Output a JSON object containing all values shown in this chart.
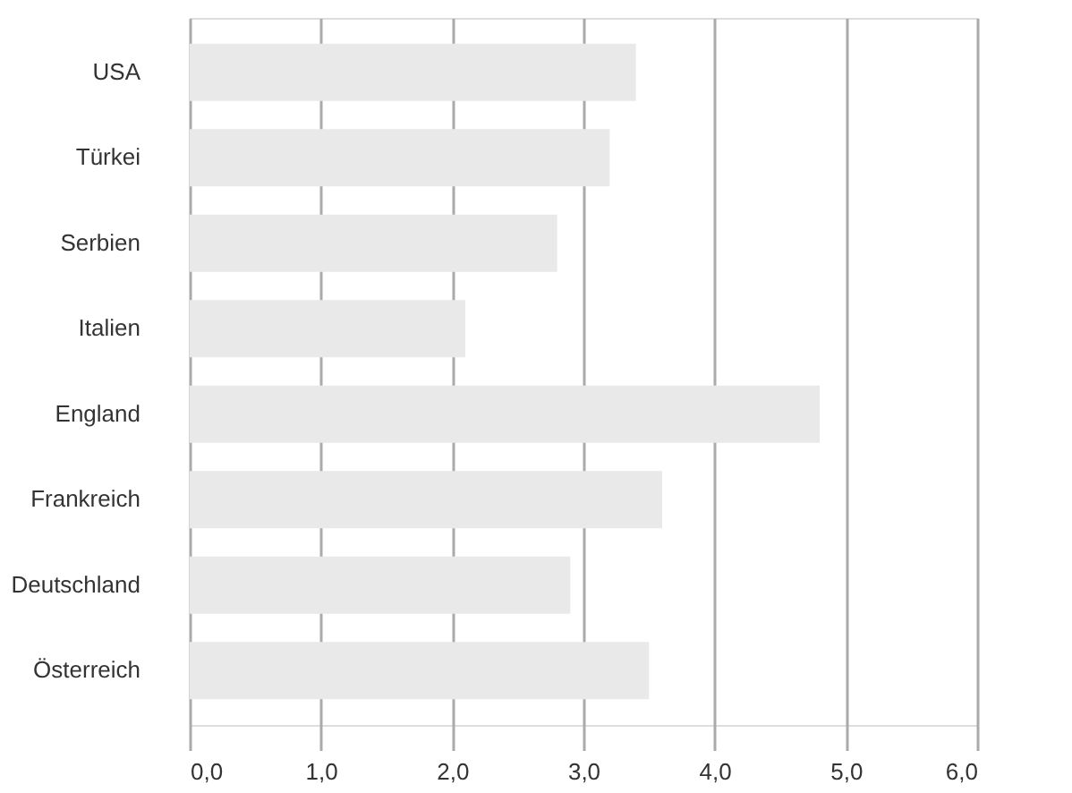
{
  "chart_data": {
    "type": "bar",
    "orientation": "horizontal",
    "categories": [
      "USA",
      "Türkei",
      "Serbien",
      "Italien",
      "England",
      "Frankreich",
      "Deutschland",
      "Österreich"
    ],
    "values": [
      3.4,
      3.2,
      2.8,
      2.1,
      4.8,
      3.6,
      2.9,
      3.5
    ],
    "color": "#e9e9e9",
    "xlim": [
      0,
      6
    ],
    "xticks": [
      {
        "value": 0,
        "label": "0,0"
      },
      {
        "value": 1,
        "label": "1,0"
      },
      {
        "value": 2,
        "label": "2,0"
      },
      {
        "value": 3,
        "label": "3,0"
      },
      {
        "value": 4,
        "label": "4,0"
      },
      {
        "value": 5,
        "label": "5,0"
      },
      {
        "value": 6,
        "label": "6,0"
      }
    ],
    "grid": "x"
  }
}
